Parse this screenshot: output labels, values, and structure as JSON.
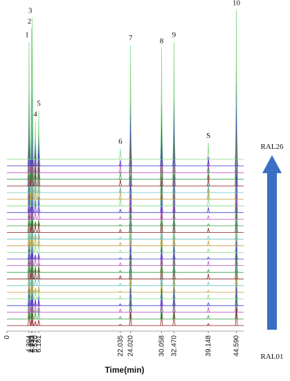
{
  "chart_data": {
    "type": "chromatogram",
    "xlabel": "Time(min)",
    "xlim": [
      0,
      46
    ],
    "ylim": [
      0,
      100
    ],
    "xticks": [
      0,
      4.304,
      4.795,
      4.933,
      {
        "value": 5.52,
        "label": "5.520"
      },
      6.181,
      22.035,
      {
        "value": 24.02,
        "label": "24.020"
      },
      30.058,
      {
        "value": 32.47,
        "label": "32.470"
      },
      39.148,
      {
        "value": 44.59,
        "label": "44.590"
      }
    ],
    "peaks": [
      {
        "label": "1",
        "x": 4.304,
        "height": 77
      },
      {
        "label": "2",
        "x": 4.795,
        "height": 86
      },
      {
        "label": "3",
        "x": 4.933,
        "height": 93
      },
      {
        "label": "4",
        "x": 5.52,
        "height": 25
      },
      {
        "label": "5",
        "x": 6.181,
        "height": 32
      },
      {
        "label": "6",
        "x": 22.035,
        "height": 7
      },
      {
        "label": "7",
        "x": 24.02,
        "height": 75
      },
      {
        "label": "8",
        "x": 30.058,
        "height": 73
      },
      {
        "label": "9",
        "x": 32.47,
        "height": 77
      },
      {
        "label": "S",
        "x": 39.148,
        "height": 11
      },
      {
        "label": "10",
        "x": 44.59,
        "height": 98
      }
    ],
    "arrow_labels": {
      "top": "RAL26",
      "bottom": "RAL01"
    },
    "arrow_color": "#3a6fc4"
  }
}
